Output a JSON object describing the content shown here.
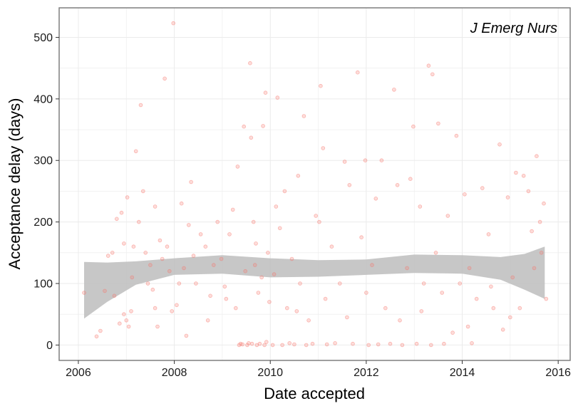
{
  "chart_data": {
    "type": "scatter",
    "title": "",
    "annotation": "J Emerg Nurs",
    "xlabel": "Date accepted",
    "ylabel": "Acceptance delay (days)",
    "xlim": [
      2005.6,
      2016.25
    ],
    "ylim": [
      -25,
      548
    ],
    "x_ticks": [
      2006,
      2008,
      2010,
      2012,
      2014,
      2016
    ],
    "y_ticks": [
      0,
      100,
      200,
      300,
      400,
      500
    ],
    "grid": true,
    "legend": "none",
    "colors": {
      "points": "#f8766d",
      "smooth_band": "#bdbdbd",
      "panel_border": "#7f7f7f",
      "grid": "#ebebeb"
    },
    "series": [
      {
        "points": [
          [
            2006.12,
            85
          ],
          [
            2006.38,
            14
          ],
          [
            2006.46,
            23
          ],
          [
            2006.55,
            88
          ],
          [
            2006.62,
            145
          ],
          [
            2006.71,
            150
          ],
          [
            2006.75,
            80
          ],
          [
            2006.8,
            205
          ],
          [
            2006.86,
            35
          ],
          [
            2006.9,
            215
          ],
          [
            2006.95,
            165
          ],
          [
            2007.0,
            40
          ],
          [
            2007.02,
            240
          ],
          [
            2007.05,
            30
          ],
          [
            2007.1,
            55
          ],
          [
            2007.15,
            160
          ],
          [
            2007.2,
            315
          ],
          [
            2007.26,
            200
          ],
          [
            2007.3,
            390
          ],
          [
            2007.35,
            250
          ],
          [
            2007.4,
            150
          ],
          [
            2007.45,
            100
          ],
          [
            2007.5,
            130
          ],
          [
            2007.55,
            90
          ],
          [
            2007.6,
            225
          ],
          [
            2007.65,
            30
          ],
          [
            2007.7,
            170
          ],
          [
            2007.75,
            140
          ],
          [
            2007.8,
            433
          ],
          [
            2007.85,
            160
          ],
          [
            2007.9,
            120
          ],
          [
            2007.95,
            55
          ],
          [
            2007.98,
            523
          ],
          [
            2008.05,
            65
          ],
          [
            2008.1,
            100
          ],
          [
            2008.15,
            230
          ],
          [
            2008.2,
            125
          ],
          [
            2008.25,
            15
          ],
          [
            2008.3,
            195
          ],
          [
            2008.35,
            265
          ],
          [
            2008.45,
            100
          ],
          [
            2008.55,
            180
          ],
          [
            2008.65,
            160
          ],
          [
            2008.75,
            80
          ],
          [
            2008.82,
            130
          ],
          [
            2008.9,
            200
          ],
          [
            2008.98,
            140
          ],
          [
            2009.08,
            75
          ],
          [
            2009.15,
            180
          ],
          [
            2009.22,
            220
          ],
          [
            2009.28,
            60
          ],
          [
            2009.32,
            290
          ],
          [
            2009.35,
            0
          ],
          [
            2009.38,
            2
          ],
          [
            2009.42,
            1
          ],
          [
            2009.45,
            355
          ],
          [
            2009.48,
            120
          ],
          [
            2009.52,
            0
          ],
          [
            2009.55,
            3
          ],
          [
            2009.58,
            458
          ],
          [
            2009.6,
            337
          ],
          [
            2009.62,
            2
          ],
          [
            2009.65,
            200
          ],
          [
            2009.68,
            130
          ],
          [
            2009.72,
            0
          ],
          [
            2009.75,
            85
          ],
          [
            2009.78,
            2
          ],
          [
            2009.82,
            110
          ],
          [
            2009.85,
            356
          ],
          [
            2009.88,
            0
          ],
          [
            2009.9,
            410
          ],
          [
            2009.92,
            5
          ],
          [
            2009.95,
            150
          ],
          [
            2009.98,
            70
          ],
          [
            2010.05,
            0
          ],
          [
            2010.12,
            225
          ],
          [
            2010.15,
            402
          ],
          [
            2010.2,
            190
          ],
          [
            2010.25,
            0
          ],
          [
            2010.3,
            250
          ],
          [
            2010.35,
            60
          ],
          [
            2010.4,
            3
          ],
          [
            2010.45,
            140
          ],
          [
            2010.5,
            1
          ],
          [
            2010.58,
            275
          ],
          [
            2010.62,
            100
          ],
          [
            2010.7,
            372
          ],
          [
            2010.75,
            0
          ],
          [
            2010.8,
            40
          ],
          [
            2010.88,
            2
          ],
          [
            2010.95,
            210
          ],
          [
            2011.02,
            200
          ],
          [
            2011.05,
            421
          ],
          [
            2011.1,
            320
          ],
          [
            2011.18,
            1
          ],
          [
            2011.28,
            160
          ],
          [
            2011.35,
            3
          ],
          [
            2011.45,
            100
          ],
          [
            2011.55,
            298
          ],
          [
            2011.65,
            260
          ],
          [
            2011.72,
            2
          ],
          [
            2011.82,
            443
          ],
          [
            2011.9,
            175
          ],
          [
            2011.98,
            300
          ],
          [
            2012.05,
            0
          ],
          [
            2012.12,
            130
          ],
          [
            2012.2,
            238
          ],
          [
            2012.25,
            1
          ],
          [
            2012.32,
            300
          ],
          [
            2012.4,
            60
          ],
          [
            2012.5,
            2
          ],
          [
            2012.58,
            415
          ],
          [
            2012.65,
            260
          ],
          [
            2012.75,
            0
          ],
          [
            2012.85,
            125
          ],
          [
            2012.92,
            270
          ],
          [
            2012.98,
            355
          ],
          [
            2013.05,
            2
          ],
          [
            2013.12,
            225
          ],
          [
            2013.2,
            100
          ],
          [
            2013.3,
            454
          ],
          [
            2013.35,
            0
          ],
          [
            2013.38,
            440
          ],
          [
            2013.45,
            150
          ],
          [
            2013.5,
            360
          ],
          [
            2013.62,
            2
          ],
          [
            2013.7,
            210
          ],
          [
            2013.8,
            20
          ],
          [
            2013.88,
            340
          ],
          [
            2013.95,
            100
          ],
          [
            2014.05,
            245
          ],
          [
            2014.12,
            30
          ],
          [
            2014.2,
            3
          ],
          [
            2014.3,
            75
          ],
          [
            2014.42,
            255
          ],
          [
            2014.55,
            180
          ],
          [
            2014.65,
            60
          ],
          [
            2014.78,
            326
          ],
          [
            2014.85,
            25
          ],
          [
            2014.95,
            240
          ],
          [
            2015.05,
            110
          ],
          [
            2015.12,
            280
          ],
          [
            2015.2,
            60
          ],
          [
            2015.28,
            275
          ],
          [
            2015.38,
            250
          ],
          [
            2015.45,
            185
          ],
          [
            2015.55,
            307
          ],
          [
            2015.62,
            200
          ],
          [
            2015.7,
            230
          ],
          [
            2015.75,
            75
          ],
          [
            2006.95,
            50
          ],
          [
            2007.12,
            110
          ],
          [
            2007.6,
            60
          ],
          [
            2008.4,
            145
          ],
          [
            2008.7,
            40
          ],
          [
            2009.05,
            95
          ],
          [
            2009.7,
            165
          ],
          [
            2010.08,
            115
          ],
          [
            2010.55,
            55
          ],
          [
            2011.15,
            75
          ],
          [
            2011.6,
            45
          ],
          [
            2012.0,
            85
          ],
          [
            2012.7,
            40
          ],
          [
            2013.15,
            55
          ],
          [
            2013.58,
            85
          ],
          [
            2014.15,
            125
          ],
          [
            2014.6,
            95
          ],
          [
            2015.0,
            45
          ],
          [
            2015.5,
            125
          ],
          [
            2015.65,
            150
          ]
        ]
      }
    ],
    "smooth": {
      "x": [
        2006.12,
        2006.6,
        2007.2,
        2008.0,
        2009.0,
        2010.0,
        2011.0,
        2012.0,
        2013.0,
        2014.0,
        2014.8,
        2015.3,
        2015.72
      ],
      "upper": [
        135,
        134,
        136,
        141,
        146,
        141,
        138,
        139,
        147,
        146,
        143,
        148,
        160
      ],
      "lower": [
        43,
        70,
        98,
        114,
        116,
        110,
        111,
        114,
        117,
        116,
        106,
        90,
        75
      ]
    }
  }
}
